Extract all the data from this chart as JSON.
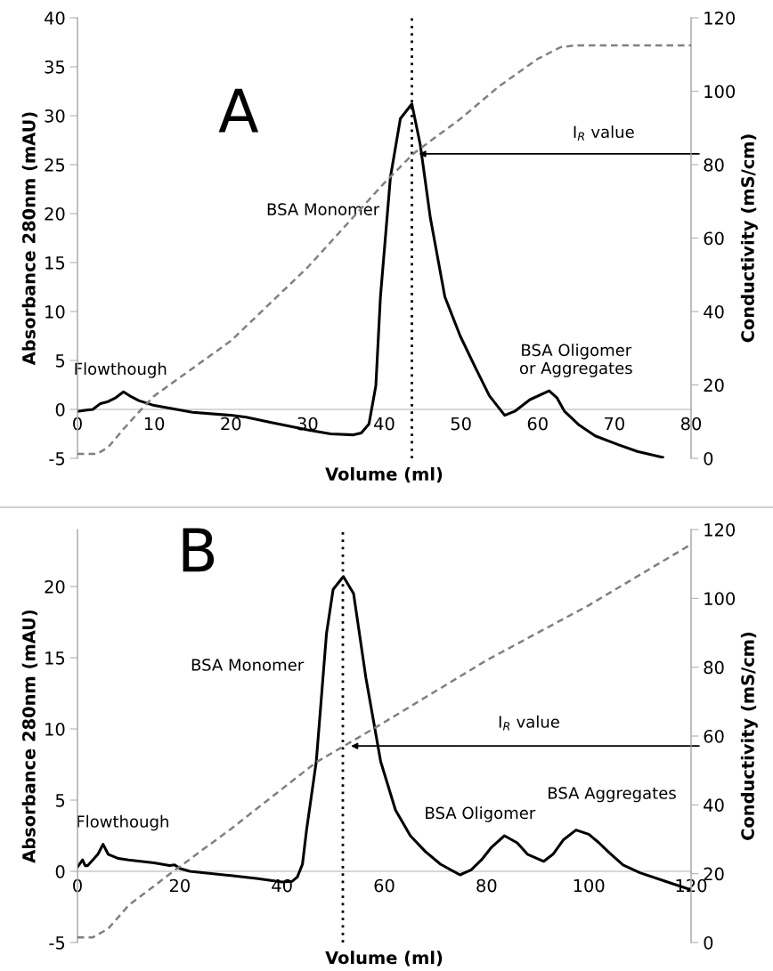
{
  "chart_data": [
    {
      "type": "line",
      "xlabel": "Volume (ml)",
      "ylabel": "Absorbance 280nm (mAU)",
      "y2label": "Conductivity (mS/cm)",
      "xlim": [
        0,
        80
      ],
      "xticks": [
        0,
        10,
        20,
        30,
        40,
        50,
        60,
        70,
        80
      ],
      "ylim": [
        -5,
        40
      ],
      "yticks": [
        -5,
        0,
        5,
        10,
        15,
        20,
        25,
        30,
        35,
        40
      ],
      "y2lim": [
        0,
        120
      ],
      "y2ticks": [
        0,
        20,
        40,
        60,
        80,
        100,
        120
      ],
      "grid": false,
      "legend": false,
      "series": [
        {
          "color": "#000000",
          "line_style": "solid",
          "x": [
            0,
            1,
            2,
            3,
            4,
            5,
            6,
            7,
            8,
            10,
            15,
            20,
            22,
            25,
            30,
            33,
            36,
            37,
            38,
            38.9,
            39.5,
            40.8,
            42.1,
            43.6,
            44.7,
            46,
            47.9,
            49.9,
            51.8,
            53.7,
            55.7,
            57,
            59,
            61.5,
            62.5,
            63.5,
            65.4,
            67.5,
            70.5,
            73,
            76.3
          ],
          "values": [
            -0.2,
            -0.1,
            0,
            0.6,
            0.8,
            1.2,
            1.8,
            1.3,
            0.9,
            0.4,
            -0.3,
            -0.6,
            -0.8,
            -1.3,
            -2.1,
            -2.5,
            -2.6,
            -2.4,
            -1.5,
            2.4,
            11.5,
            23.7,
            29.7,
            31.2,
            27,
            19.6,
            11.5,
            7.5,
            4.4,
            1.4,
            -0.6,
            -0.2,
            1,
            1.9,
            1.2,
            -0.2,
            -1.6,
            -2.7,
            -3.6,
            -4.3,
            -4.9
          ]
        },
        {
          "color": "#808080",
          "line_style": "dashed",
          "axis": "y2",
          "x": [
            0,
            2.5,
            4,
            6,
            8.3,
            10,
            20,
            30,
            40,
            43.8,
            50,
            55,
            60,
            63,
            65,
            80
          ],
          "values": [
            1.2,
            1.2,
            3,
            8,
            13.3,
            17,
            32,
            52,
            75,
            83,
            92.6,
            101.4,
            108.8,
            112,
            112.5,
            112.5
          ]
        }
      ],
      "ref_lines": [
        {
          "axis": "x",
          "value": 43.6,
          "color": "#000000",
          "line_style": "dotted"
        }
      ],
      "annotations": [
        "A",
        "BSA Monomer",
        "Flowthough",
        "BSA Oligomer\nor Aggregates",
        "I$_{R}$ value"
      ]
    },
    {
      "type": "line",
      "xlabel": "Volume (ml)",
      "ylabel": "Absorbance 280nm (mAU)",
      "y2label": "Conductivity (mS/cm)",
      "xlim": [
        0,
        120
      ],
      "xticks": [
        0,
        20,
        40,
        60,
        80,
        100,
        120
      ],
      "ylim": [
        -5,
        24
      ],
      "yticks": [
        -5,
        0,
        5,
        10,
        15,
        20
      ],
      "y2lim": [
        0,
        120
      ],
      "y2ticks": [
        0,
        20,
        40,
        60,
        80,
        100,
        120
      ],
      "grid": false,
      "legend": false,
      "series": [
        {
          "color": "#000000",
          "line_style": "solid",
          "x": [
            0,
            1,
            1.5,
            2,
            3,
            4,
            5,
            6,
            8,
            10,
            15,
            18,
            19,
            20,
            22,
            30,
            35,
            40,
            42,
            43,
            44,
            44.8,
            46.7,
            48.7,
            50,
            52,
            54,
            56.4,
            59.3,
            62.2,
            65.1,
            68,
            71,
            74.8,
            77,
            79,
            81,
            83.5,
            86,
            88,
            91.2,
            93,
            95,
            97.5,
            100,
            102,
            104,
            106.7,
            110,
            115,
            120
          ],
          "values": [
            0.3,
            0.8,
            0.4,
            0.4,
            0.8,
            1.2,
            1.9,
            1.2,
            0.9,
            0.8,
            0.6,
            0.4,
            0.45,
            0.2,
            0,
            -0.3,
            -0.5,
            -0.75,
            -0.7,
            -0.4,
            0.5,
            2.9,
            7.7,
            16.7,
            19.8,
            20.7,
            19.5,
            13.6,
            7.7,
            4.3,
            2.5,
            1.4,
            0.5,
            -0.25,
            0.1,
            0.8,
            1.7,
            2.5,
            2,
            1.2,
            0.7,
            1.2,
            2.2,
            2.9,
            2.6,
            2,
            1.3,
            0.45,
            -0.1,
            -0.7,
            -1.3
          ]
        },
        {
          "color": "#808080",
          "line_style": "dashed",
          "axis": "y2",
          "x": [
            0,
            3,
            6,
            10,
            18.5,
            30,
            46.7,
            52,
            60,
            80,
            100,
            120
          ],
          "values": [
            1.5,
            1.5,
            4,
            10.8,
            20.4,
            33,
            52.4,
            57,
            64,
            82,
            98,
            115.7
          ]
        }
      ],
      "ref_lines": [
        {
          "axis": "x",
          "value": 51.9,
          "color": "#000000",
          "line_style": "dotted"
        }
      ],
      "annotations": [
        "B",
        "BSA Monomer",
        "Flowthough",
        "BSA Oligomer",
        "BSA Aggregates",
        "I$_{R}$ value"
      ]
    }
  ]
}
